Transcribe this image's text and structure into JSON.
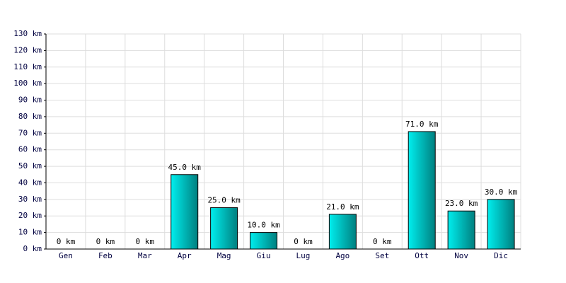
{
  "chart_data": {
    "type": "bar",
    "categories": [
      "Gen",
      "Feb",
      "Mar",
      "Apr",
      "Mag",
      "Giu",
      "Lug",
      "Ago",
      "Set",
      "Ott",
      "Nov",
      "Dic"
    ],
    "values": [
      0,
      0,
      0,
      45,
      25,
      10,
      0,
      21,
      0,
      71,
      23,
      30
    ],
    "value_labels": [
      "0 km",
      "0 km",
      "0 km",
      "45.0 km",
      "25.0 km",
      "10.0 km",
      "0 km",
      "21.0 km",
      "0 km",
      "71.0 km",
      "23.0 km",
      "30.0 km"
    ],
    "color": "#00cccc",
    "ylim": [
      0,
      130
    ],
    "yticks": [
      {
        "value": 0,
        "label": "0 km"
      },
      {
        "value": 10,
        "label": "10 km"
      },
      {
        "value": 20,
        "label": "20 km"
      },
      {
        "value": 30,
        "label": "30 km"
      },
      {
        "value": 40,
        "label": "40 km"
      },
      {
        "value": 50,
        "label": "50 km"
      },
      {
        "value": 60,
        "label": "60 km"
      },
      {
        "value": 70,
        "label": "70 km"
      },
      {
        "value": 80,
        "label": "80 km"
      },
      {
        "value": 90,
        "label": "90 km"
      },
      {
        "value": 100,
        "label": "100 km"
      },
      {
        "value": 110,
        "label": "110 km"
      },
      {
        "value": 120,
        "label": "120 km"
      },
      {
        "value": 130,
        "label": "130 km"
      }
    ],
    "grid": true
  }
}
